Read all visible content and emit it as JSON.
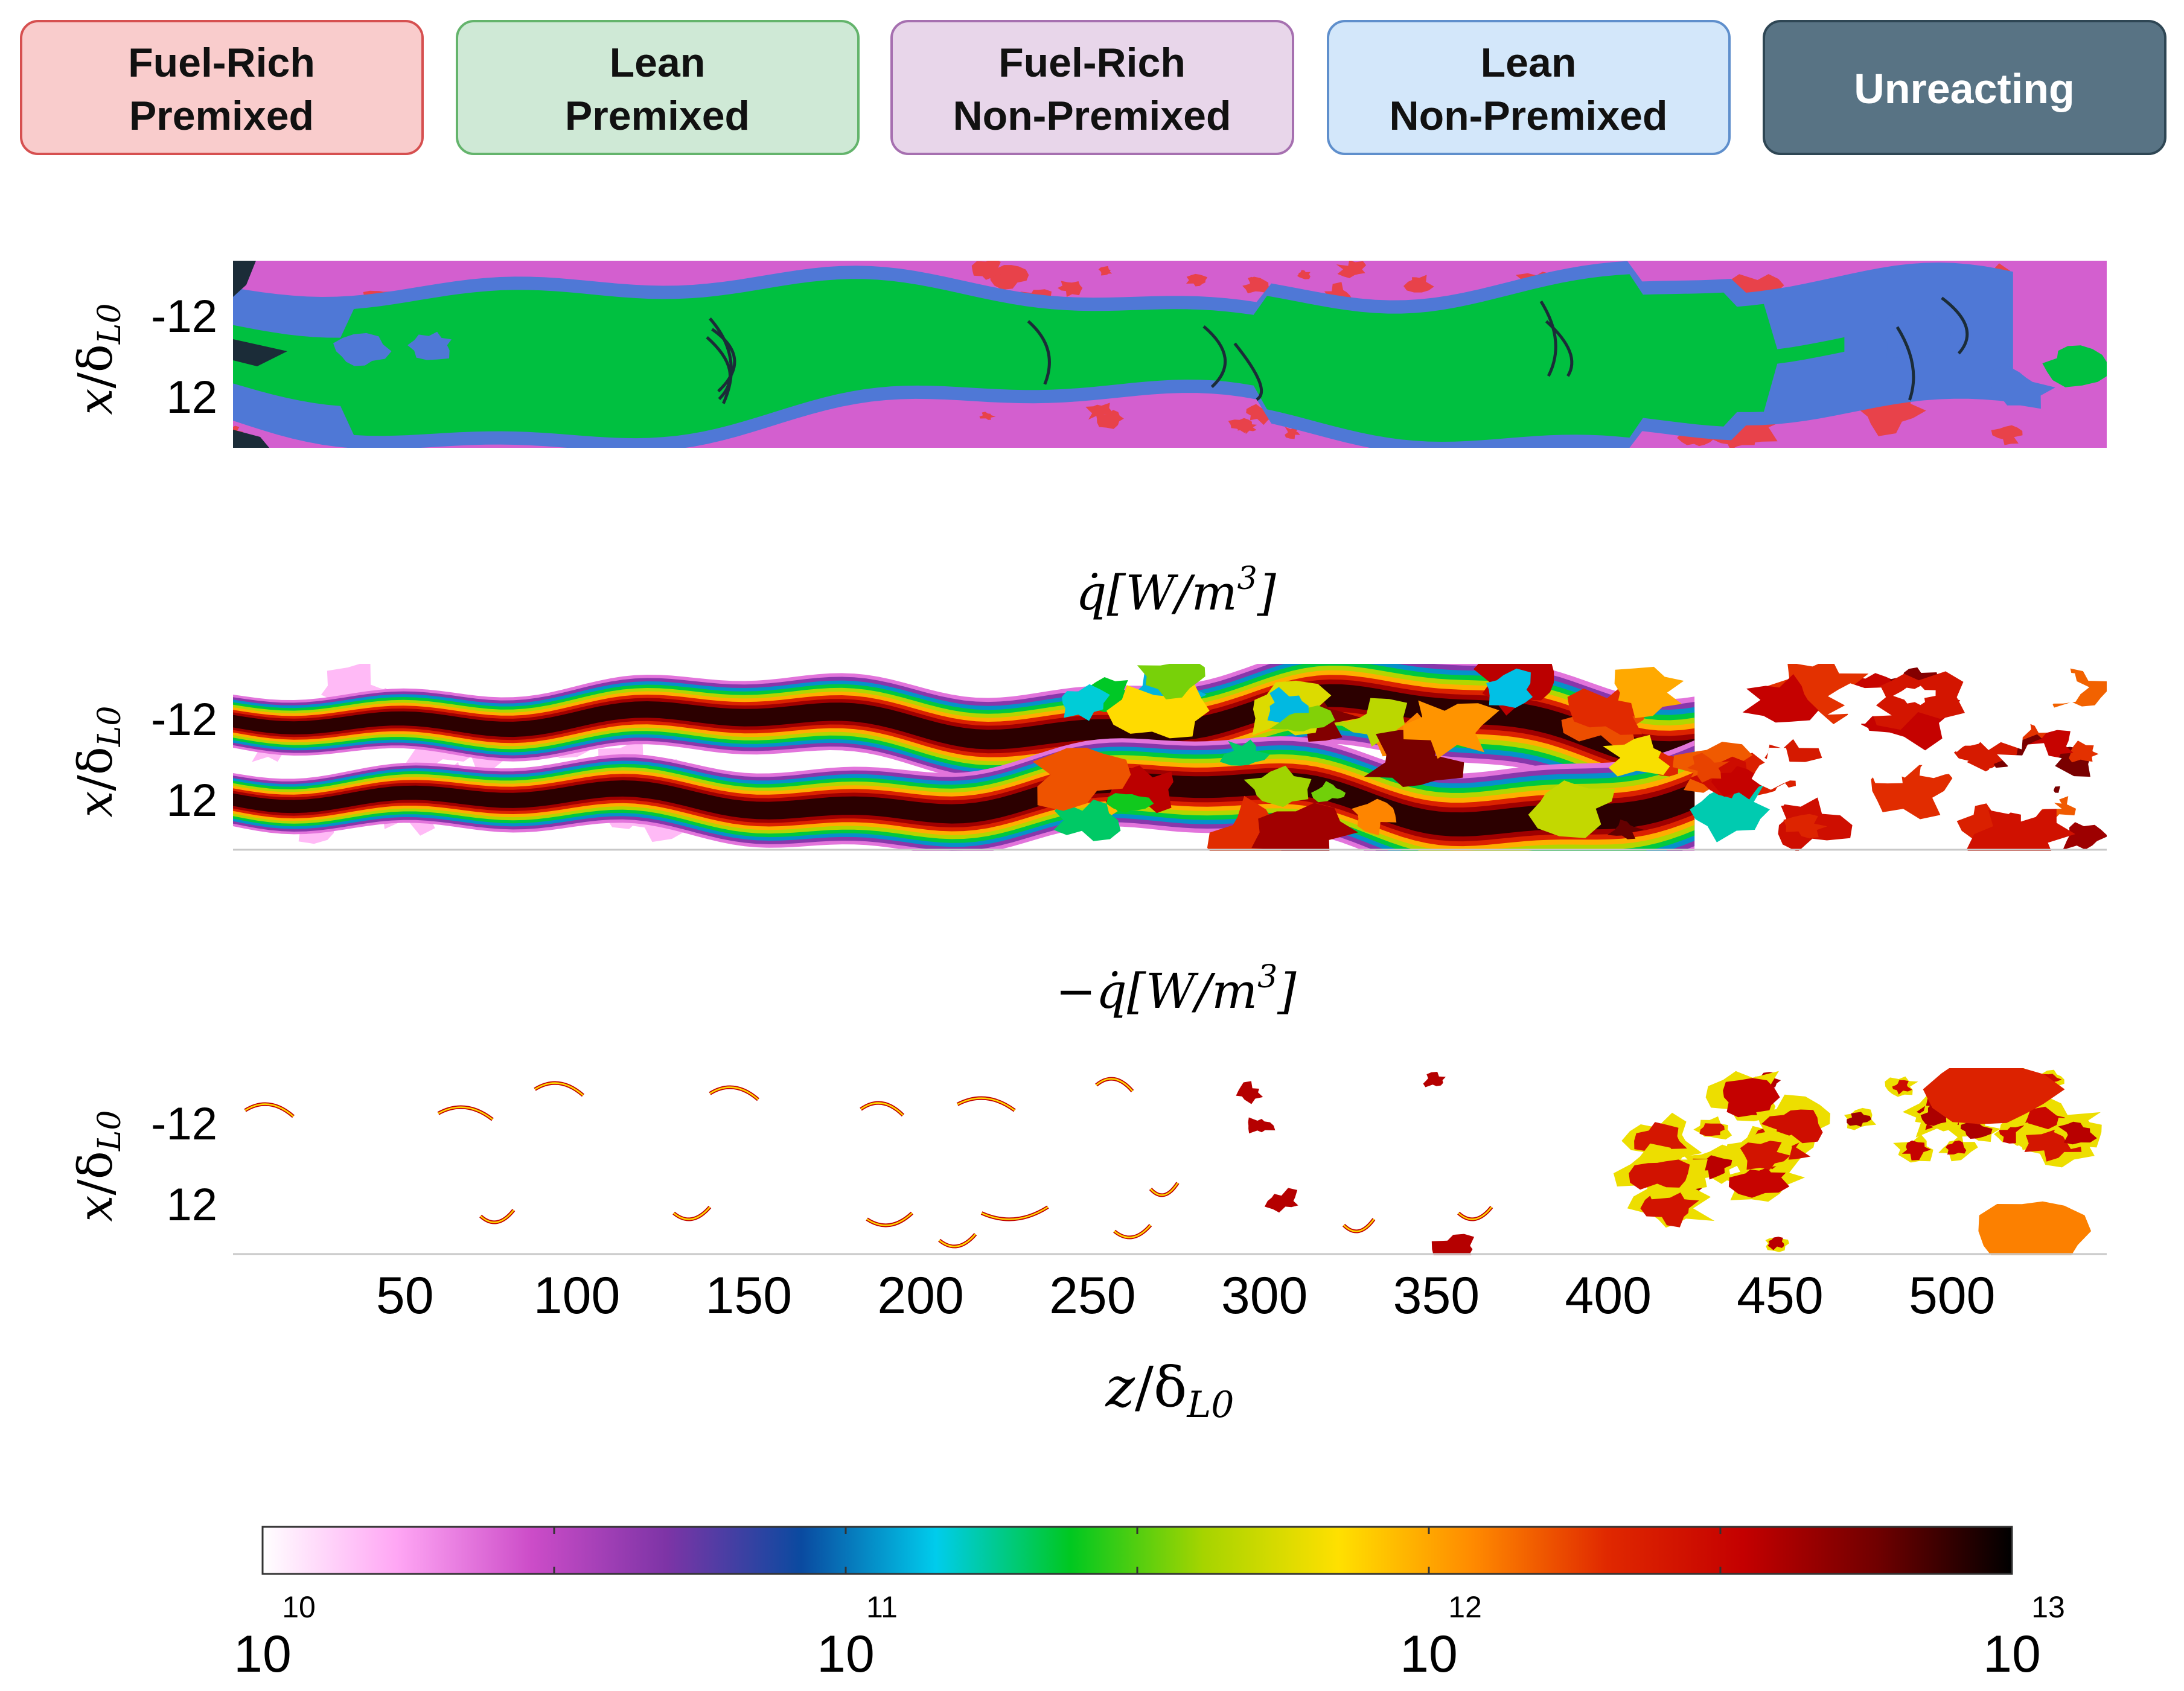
{
  "legend": {
    "items": [
      {
        "line1": "Fuel-Rich",
        "line2": "Premixed",
        "fill": "#f9cccc",
        "stroke": "#d65050",
        "text_color": "#111111"
      },
      {
        "line1": "Lean",
        "line2": "Premixed",
        "fill": "#cfe9d6",
        "stroke": "#64b46c",
        "text_color": "#111111"
      },
      {
        "line1": "Fuel-Rich",
        "line2": "Non-Premixed",
        "fill": "#e8d6ea",
        "stroke": "#a670b0",
        "text_color": "#111111"
      },
      {
        "line1": "Lean",
        "line2": "Non-Premixed",
        "fill": "#d3e7fa",
        "stroke": "#5f8fcc",
        "text_color": "#111111"
      },
      {
        "line1": "Unreacting",
        "line2": "",
        "fill": "#587384",
        "stroke": "#2e4654",
        "text_color": "#ffffff"
      }
    ]
  },
  "colors": {
    "fuel_rich_premixed": "#e8424a",
    "lean_premixed": "#00c040",
    "fuel_rich_non_premixed": "#d35fcf",
    "lean_non_premixed": "#4f78d6",
    "unreacting": "#1b2c38"
  },
  "chart_data": [
    {
      "type": "heatmap",
      "title": "",
      "xlabel_main": "z",
      "xlabel_sub": "L0",
      "ylabel_main": "x",
      "ylabel_sub": "L0",
      "ytick_labels": [
        "-12",
        "12"
      ],
      "yticks": [
        -12,
        12
      ],
      "xlim": [
        0,
        545
      ],
      "categories": [
        "Fuel-Rich Premixed",
        "Lean Premixed",
        "Fuel-Rich Non-Premixed",
        "Lean Non-Premixed",
        "Unreacting"
      ]
    },
    {
      "type": "heatmap",
      "title": "q̇[W/m³]",
      "title_main": "q̇[W/m",
      "title_sup": "3",
      "title_end": "]",
      "ylabel_main": "x",
      "ylabel_sub": "L0",
      "ytick_labels": [
        "-12",
        "12"
      ],
      "yticks": [
        -12,
        12
      ],
      "xlim": [
        0,
        545
      ],
      "colorscale": "log",
      "clim": [
        10000000000.0,
        10000000000000.0
      ]
    },
    {
      "type": "heatmap",
      "title": "−q̇[W/m³]",
      "title_main": "−q̇[W/m",
      "title_sup": "3",
      "title_end": "]",
      "ylabel_main": "x",
      "ylabel_sub": "L0",
      "ytick_labels": [
        "-12",
        "12"
      ],
      "yticks": [
        -12,
        12
      ],
      "xlim": [
        0,
        545
      ],
      "xticks": [
        50,
        100,
        150,
        200,
        250,
        300,
        350,
        400,
        450,
        500
      ],
      "xtick_labels": [
        "50",
        "100",
        "150",
        "200",
        "250",
        "300",
        "350",
        "400",
        "450",
        "500"
      ],
      "colorscale": "log",
      "clim": [
        10000000000.0,
        10000000000000.0
      ]
    }
  ],
  "colorbar": {
    "scale": "log",
    "range": [
      10000000000.0,
      10000000000000.0
    ],
    "ticks": [
      {
        "base": "10",
        "exp": "10"
      },
      {
        "base": "10",
        "exp": "11"
      },
      {
        "base": "10",
        "exp": "12"
      },
      {
        "base": "10",
        "exp": "13"
      }
    ],
    "stops": [
      "#ffffff",
      "#ffa6f4",
      "#cc4cc8",
      "#7d34a6",
      "#0a4aa0",
      "#00ccec",
      "#00c820",
      "#a6d400",
      "#ffe000",
      "#ff8a00",
      "#e02800",
      "#c40000",
      "#700000",
      "#000000"
    ]
  },
  "x_axis_label": {
    "main": "z",
    "sub": "L0"
  }
}
